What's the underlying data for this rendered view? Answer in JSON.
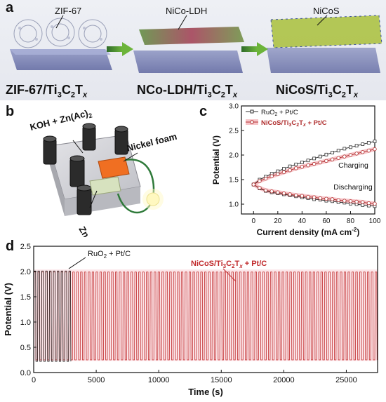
{
  "panel_a": {
    "letter": "a",
    "labels": [
      "ZIF-67",
      "NiCo-LDH",
      "NiCoS"
    ],
    "captions": [
      {
        "main": "ZIF-67/Ti",
        "s1": "3",
        "mid": "C",
        "s2": "2",
        "tail": "T",
        "sx": "x"
      },
      {
        "main": "NCo-LDH/Ti",
        "s1": "3",
        "mid": "C",
        "s2": "2",
        "tail": "T",
        "sx": "x"
      },
      {
        "main": "NiCoS/Ti",
        "s1": "3",
        "mid": "C",
        "s2": "2",
        "tail": "T",
        "sx": "x"
      }
    ]
  },
  "panel_b": {
    "letter": "b",
    "electrolyte": "KOH + Zn(Ac)",
    "electrolyte_sub": "2",
    "nickel_foam": "Nickel foam",
    "zn_plate": "Zn plate"
  },
  "panel_c": {
    "letter": "c",
    "charging": "Charging",
    "discharging": "Discharging"
  },
  "panel_d": {
    "letter": "d",
    "ru_label": "RuO",
    "ru_sub": "2",
    "ru_tail": " + Pt/C",
    "nicos_label": "NiCoS/Ti",
    "nicos_tail": " + Pt/C"
  },
  "chart_data": [
    {
      "type": "line",
      "panel": "c",
      "xlabel": "Current density (mA cm",
      "xlabel_sup": "-2",
      "xlabel_tail": ")",
      "ylabel": "Potential (V)",
      "xlim": [
        -10,
        100
      ],
      "ylim": [
        0.8,
        3.0
      ],
      "xticks": [
        0,
        20,
        40,
        60,
        80,
        100
      ],
      "yticks": [
        1.0,
        1.5,
        2.0,
        2.5,
        3.0
      ],
      "legend_position": "top-left",
      "colors": {
        "ruo2": "#333333",
        "nicos": "#b03030",
        "shade": "#f4b0b6"
      },
      "x": [
        0,
        5,
        10,
        15,
        20,
        25,
        30,
        35,
        40,
        45,
        50,
        55,
        60,
        65,
        70,
        75,
        80,
        85,
        90,
        95,
        100
      ],
      "series": [
        {
          "name": "RuO2 + Pt/C",
          "branch": "charge",
          "values": [
            1.4,
            1.5,
            1.56,
            1.62,
            1.67,
            1.72,
            1.77,
            1.81,
            1.85,
            1.89,
            1.93,
            1.97,
            2.01,
            2.05,
            2.09,
            2.13,
            2.16,
            2.19,
            2.22,
            2.25,
            2.28
          ]
        },
        {
          "name": "NiCoS/Ti3C2Tx + Pt/C",
          "branch": "charge",
          "values": [
            1.4,
            1.47,
            1.52,
            1.57,
            1.61,
            1.65,
            1.69,
            1.73,
            1.76,
            1.79,
            1.82,
            1.85,
            1.88,
            1.91,
            1.94,
            1.97,
            2.0,
            2.03,
            2.06,
            2.09,
            2.12
          ]
        },
        {
          "name": "RuO2 + Pt/C",
          "branch": "discharge",
          "values": [
            1.4,
            1.32,
            1.27,
            1.24,
            1.22,
            1.2,
            1.18,
            1.16,
            1.14,
            1.12,
            1.1,
            1.09,
            1.07,
            1.06,
            1.04,
            1.03,
            1.01,
            1.0,
            0.98,
            0.97,
            0.96
          ]
        },
        {
          "name": "NiCoS/Ti3C2Tx + Pt/C",
          "branch": "discharge",
          "values": [
            1.4,
            1.33,
            1.28,
            1.26,
            1.24,
            1.22,
            1.2,
            1.18,
            1.17,
            1.15,
            1.14,
            1.12,
            1.11,
            1.1,
            1.08,
            1.07,
            1.06,
            1.05,
            1.04,
            1.02,
            1.01
          ]
        }
      ]
    },
    {
      "type": "line",
      "panel": "d",
      "xlabel": "Time (s)",
      "ylabel": "Potential (V)",
      "xlim": [
        0,
        27500
      ],
      "ylim": [
        0.0,
        2.5
      ],
      "xticks": [
        0,
        5000,
        10000,
        15000,
        20000,
        25000
      ],
      "yticks": [
        0.0,
        0.5,
        1.0,
        1.5,
        2.0,
        2.5
      ],
      "colors": {
        "ruo2": "#222222",
        "nicos": "#c0282a",
        "shade": "#f5b8bf"
      },
      "series": [
        {
          "name": "RuO2 + Pt/C",
          "t_end": 3000,
          "period": 310,
          "high": 2.01,
          "low": 0.22
        },
        {
          "name": "NiCoS/Ti3C2Tx + Pt/C",
          "t_end": 27500,
          "period": 310,
          "high": 1.99,
          "low": 0.25
        }
      ]
    }
  ]
}
